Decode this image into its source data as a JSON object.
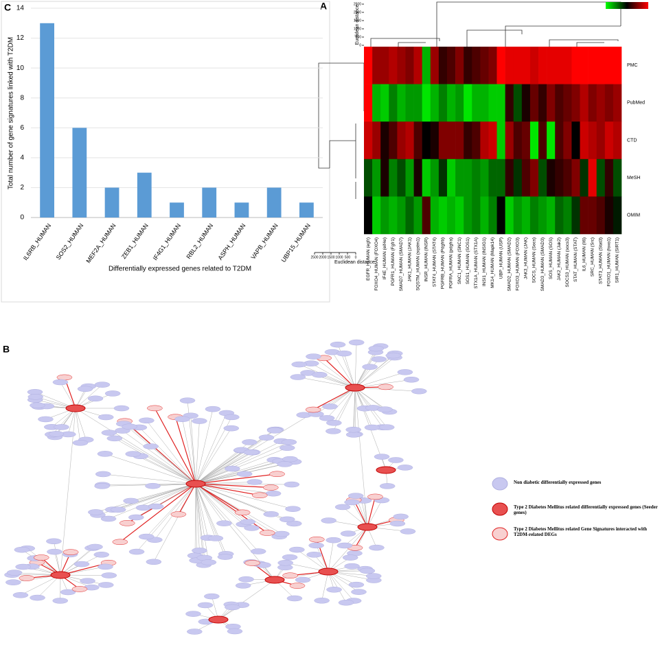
{
  "chart_data": [
    {
      "type": "bar",
      "panel_label": "C",
      "x_label": "Differentially expressed genes related to T2DM",
      "y_label": "Total number of gene signatures linked with T2DM",
      "categories": [
        "IL6RB_HUMAN",
        "SOS2_HUMAN",
        "MEF2A_HUMAN",
        "ZEB1_HUMAN",
        "IF4G1_HUMAN",
        "RBL2_HUMAN",
        "ASPH_HUMAN",
        "VAPB_HUMAN",
        "UBP15_HUMAN"
      ],
      "values": [
        13,
        6,
        2,
        3,
        1,
        2,
        1,
        2,
        1
      ],
      "color": "#5b9bd5",
      "ylim": [
        0,
        14
      ],
      "yticks": [
        0,
        2,
        4,
        6,
        8,
        10,
        12,
        14
      ],
      "grid": true
    },
    {
      "type": "heatmap",
      "panel_label": "A",
      "axis_label": "Euclidean distance",
      "distance_ticks": [
        0,
        500,
        1000,
        1500,
        2000,
        2500
      ],
      "rows": [
        "PMC",
        "PubMed",
        "CTD",
        "MeSH",
        "OMIM"
      ],
      "columns": [
        "EGFR_HUMAN (egfr)",
        "FOXO4_HUMAN (FOXO4)",
        "IF4E_HUMAN (eif4e)",
        "PGFR1_HUMAN (Fgfr1)",
        "SMAD7_HUMAN (SMAD7)",
        "JAK1_HUMAN (JAK1)",
        "SQSTM_HUMAN (sqstm1)",
        "INSR_HUMAN (INSR)",
        "STAT4_HUMAN (STAT4)",
        "PGFRB_HUMAN (Pdgfrb)",
        "PGFRA_HUMAN (pdgfra)",
        "SNC1_HUMAN (SNC1)",
        "SOS1_HUMAN (SOS1)",
        "STX1A_HUMAN (STX1A)",
        "INSI1_HUMAN (INSIG1)",
        "MK14_HUMAN (Mapk14)",
        "UBP_HUMAN (USP)",
        "SMAD2_HUMAN (SMAD2)",
        "FOXO3_HUMAN (FOXO3)",
        "JAK3_HUMAN (JAK)",
        "SOCS_HUMAN (Socs)",
        "SMAD3_HUMAN (SMAD3)",
        "SOS_HUMAN (SOS)",
        "JAK2_HUMAN (Jak2)",
        "SOCS3_HUMAN (socs3)",
        "STAT_HUMAN (STAT)",
        "IL6_HUMAN (Il6)",
        "SRC_HUMAN (Src)",
        "STAT3_HUMAN (Stat3)",
        "FOXO1_HUMAN (foxo1)",
        "SIR1_HUMAN (SIRT1)"
      ],
      "values": [
        [
          1,
          0.6,
          0.6,
          0.7,
          0.6,
          0.5,
          0.7,
          -0.7,
          0.6,
          0.2,
          0.3,
          0.5,
          0.2,
          0.3,
          0.4,
          0.5,
          1,
          0.9,
          0.9,
          0.9,
          0.8,
          0.9,
          0.9,
          0.9,
          0.9,
          1,
          1,
          1,
          1,
          1,
          1
        ],
        [
          1,
          -0.7,
          -0.8,
          -0.5,
          -0.7,
          -0.6,
          -0.6,
          -0.9,
          -0.7,
          -0.5,
          -0.7,
          -0.6,
          -0.9,
          -0.7,
          -0.7,
          -0.8,
          -0.8,
          0.2,
          -0.3,
          0.1,
          0.4,
          0.2,
          0.5,
          0.3,
          0.4,
          0.5,
          0.7,
          0.5,
          0.6,
          0.5,
          0.6
        ],
        [
          0.8,
          0.6,
          0.1,
          0.3,
          0.6,
          0.7,
          0.3,
          0,
          0.1,
          0.5,
          0.5,
          0.5,
          0.2,
          0.3,
          0.7,
          0.8,
          -0.8,
          0.6,
          0.3,
          0.4,
          -0.9,
          0.3,
          -0.9,
          0.3,
          0.5,
          0,
          0.8,
          0.7,
          0.6,
          0.8,
          0.7
        ],
        [
          -0.3,
          -0.6,
          0.1,
          -0.5,
          -0.3,
          -0.6,
          0.1,
          -0.8,
          -0.6,
          -0.2,
          -0.8,
          -0.6,
          -0.6,
          -0.5,
          -0.6,
          -0.4,
          -0.4,
          0.2,
          -0.2,
          0.3,
          0.5,
          -0.3,
          0.1,
          0.2,
          0.3,
          0.5,
          -0.2,
          0.9,
          -0.3,
          0.2,
          -0.3
        ],
        [
          0,
          -0.8,
          -0.6,
          -0.7,
          -0.6,
          -0.4,
          -0.6,
          0.3,
          -0.7,
          -0.8,
          -0.7,
          -0.8,
          -0.6,
          -0.5,
          -0.7,
          -0.5,
          0,
          -0.8,
          -0.6,
          -0.7,
          -0.5,
          -0.6,
          -0.7,
          -0.4,
          -0.5,
          -0.2,
          0.4,
          0.4,
          0.3,
          0.1,
          -0.1
        ]
      ],
      "vlim": [
        -1,
        1
      ],
      "colorscale": [
        "#00ff00",
        "#000000",
        "#ff0000"
      ]
    }
  ],
  "network": {
    "panel_label": "B",
    "legend": [
      "Non diabetic differentially expressed genes",
      "Type 2 Diabetes Mellitus related differentially expressed genes (Seeder genes)",
      "Type 2 Diabetes Mellitus related Gene Signatures interacted with T2DM-related DEGs"
    ]
  }
}
